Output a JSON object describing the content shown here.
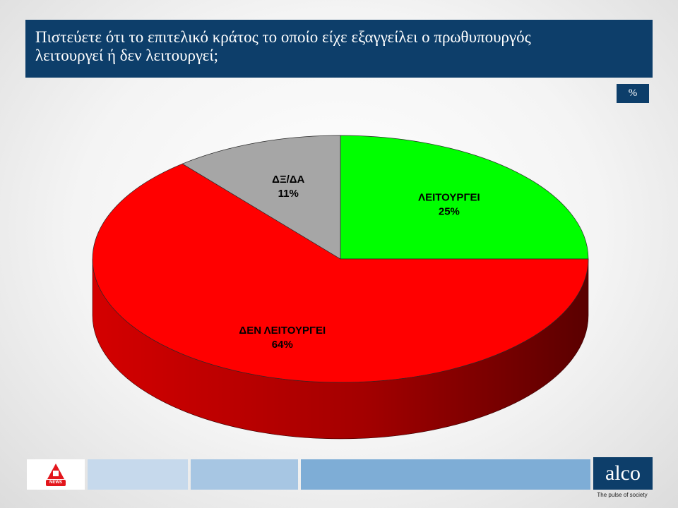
{
  "header": {
    "title_line1": "Πιστεύετε ότι το επιτελικό κράτος το οποίο είχε εξαγγείλει ο πρωθυπουργός",
    "title_line2": "λειτουργεί ή δεν λειτουργεί;",
    "background_color": "#0d3e6a"
  },
  "unit_badge": "%",
  "chart_data": {
    "type": "pie",
    "title": "Πιστεύετε ότι το επιτελικό κράτος το οποίο είχε εξαγγείλει ο πρωθυπουργός λειτουργεί ή δεν λειτουργεί;",
    "unit": "%",
    "style": "3d",
    "slices": [
      {
        "label": "ΛΕΙΤΟΥΡΓΕΙ",
        "value": 25,
        "display": "25%",
        "color": "#00ff00"
      },
      {
        "label": "ΔΕΝ ΛΕΙΤΟΥΡΓΕΙ",
        "value": 64,
        "display": "64%",
        "color": "#ff0000"
      },
      {
        "label": "ΔΞ/ΔΑ",
        "value": 11,
        "display": "11%",
        "color": "#a6a6a6"
      }
    ]
  },
  "footer": {
    "alpha_logo_text": "NEWS",
    "brand": "alco",
    "tagline": "The pulse of society",
    "bar_colors": [
      "#c6d9ec",
      "#a7c6e3",
      "#7eadd6"
    ]
  }
}
